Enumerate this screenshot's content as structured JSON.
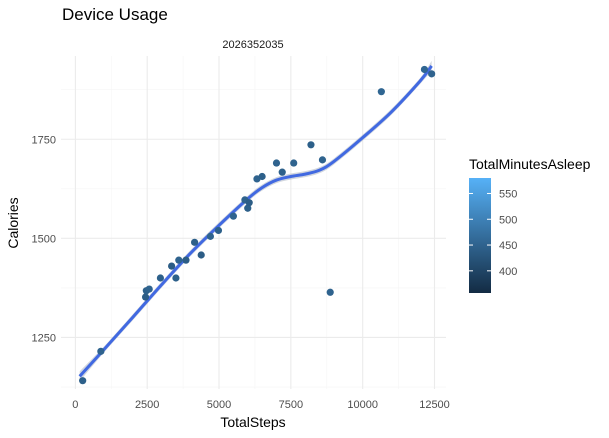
{
  "chart_data": {
    "type": "scatter",
    "title": "Device Usage",
    "facet_label": "2026352035",
    "xlabel": "TotalSteps",
    "ylabel": "Calories",
    "xlim": [
      -500,
      12900
    ],
    "ylim": [
      1120,
      1960
    ],
    "x_ticks": [
      0,
      2500,
      5000,
      7500,
      10000,
      12500
    ],
    "x_tick_labels": [
      "0",
      "2500",
      "5000",
      "7500",
      "10000",
      "12500"
    ],
    "y_ticks": [
      1250,
      1500,
      1750
    ],
    "y_tick_labels": [
      "1250",
      "1500",
      "1750"
    ],
    "grid": true,
    "legend": {
      "title": "TotalMinutesAsleep",
      "placement": "right",
      "range": [
        357,
        580
      ],
      "ticks": [
        400,
        450,
        500,
        550
      ],
      "tick_labels": [
        "400",
        "450",
        "500",
        "550"
      ],
      "color_low": "#132b43",
      "color_high": "#56b1f7"
    },
    "smooth_line_color": "#4169e1",
    "points": [
      {
        "x": 254,
        "y": 1141,
        "c": 445
      },
      {
        "x": 887,
        "y": 1215,
        "c": 450
      },
      {
        "x": 2443,
        "y": 1352,
        "c": 440
      },
      {
        "x": 2470,
        "y": 1368,
        "c": 445
      },
      {
        "x": 2570,
        "y": 1372,
        "c": 450
      },
      {
        "x": 2960,
        "y": 1400,
        "c": 445
      },
      {
        "x": 3350,
        "y": 1430,
        "c": 440
      },
      {
        "x": 3500,
        "y": 1400,
        "c": 445
      },
      {
        "x": 3600,
        "y": 1445,
        "c": 450
      },
      {
        "x": 3850,
        "y": 1445,
        "c": 440
      },
      {
        "x": 4150,
        "y": 1490,
        "c": 445
      },
      {
        "x": 4380,
        "y": 1458,
        "c": 440
      },
      {
        "x": 4700,
        "y": 1505,
        "c": 450
      },
      {
        "x": 4980,
        "y": 1520,
        "c": 445
      },
      {
        "x": 5500,
        "y": 1556,
        "c": 450
      },
      {
        "x": 5900,
        "y": 1597,
        "c": 450
      },
      {
        "x": 6000,
        "y": 1576,
        "c": 445
      },
      {
        "x": 6050,
        "y": 1590,
        "c": 440
      },
      {
        "x": 6320,
        "y": 1650,
        "c": 450
      },
      {
        "x": 6500,
        "y": 1656,
        "c": 445
      },
      {
        "x": 7000,
        "y": 1690,
        "c": 450
      },
      {
        "x": 7200,
        "y": 1667,
        "c": 445
      },
      {
        "x": 7600,
        "y": 1690,
        "c": 450
      },
      {
        "x": 8200,
        "y": 1736,
        "c": 445
      },
      {
        "x": 8600,
        "y": 1698,
        "c": 450
      },
      {
        "x": 8870,
        "y": 1364,
        "c": 450
      },
      {
        "x": 10650,
        "y": 1870,
        "c": 455
      },
      {
        "x": 12150,
        "y": 1926,
        "c": 455
      },
      {
        "x": 12400,
        "y": 1915,
        "c": 450
      }
    ],
    "smooth_curve": [
      [
        150,
        1152
      ],
      [
        1000,
        1220
      ],
      [
        2000,
        1301
      ],
      [
        3000,
        1383
      ],
      [
        4000,
        1462
      ],
      [
        5000,
        1533
      ],
      [
        6000,
        1600
      ],
      [
        6500,
        1628
      ],
      [
        7000,
        1647
      ],
      [
        7500,
        1656
      ],
      [
        8000,
        1662
      ],
      [
        8500,
        1672
      ],
      [
        9000,
        1694
      ],
      [
        10000,
        1754
      ],
      [
        11000,
        1819
      ],
      [
        12000,
        1897
      ],
      [
        12400,
        1935
      ]
    ]
  }
}
